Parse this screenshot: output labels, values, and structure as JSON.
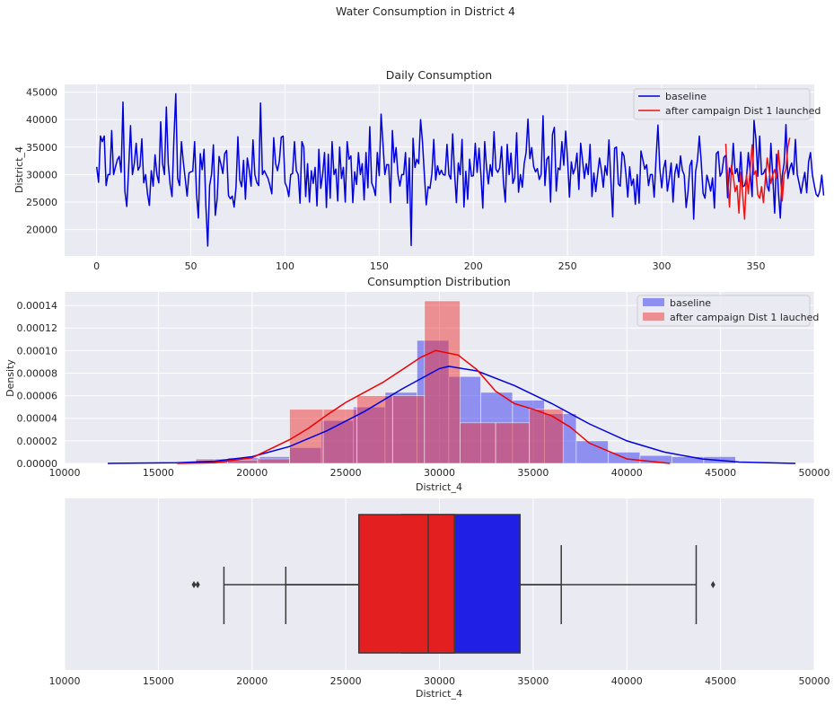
{
  "figure": {
    "suptitle": "Water Consumption in District 4"
  },
  "chart_data": [
    {
      "type": "line",
      "title": "Daily Consumption",
      "xlabel": "",
      "ylabel": "District_4",
      "xlim": [
        -17,
        381
      ],
      "ylim": [
        15200,
        46400
      ],
      "xticks": [
        0,
        50,
        100,
        150,
        200,
        250,
        300,
        350
      ],
      "yticks": [
        20000,
        25000,
        30000,
        35000,
        40000,
        45000
      ],
      "grid": true,
      "legend": "top-right",
      "series": [
        {
          "name": "baseline",
          "color": "#0000dd",
          "x_start": 0,
          "values": [
            31400,
            28600,
            37000,
            36000,
            37000,
            28000,
            30000,
            30000,
            38000,
            30000,
            31400,
            32700,
            33300,
            30400,
            43200,
            27000,
            24200,
            31000,
            38900,
            30000,
            32000,
            35700,
            30800,
            31500,
            36500,
            28500,
            30000,
            26500,
            24400,
            30700,
            27900,
            33600,
            30000,
            28500,
            39600,
            32000,
            30000,
            42300,
            32000,
            28200,
            26000,
            36400,
            44700,
            29300,
            28000,
            36000,
            32300,
            29300,
            26100,
            30300,
            30500,
            30600,
            36000,
            26500,
            22100,
            33800,
            30900,
            34600,
            24400,
            17000,
            28000,
            30000,
            35400,
            22600,
            25600,
            33300,
            31900,
            30200,
            33800,
            34400,
            26200,
            25600,
            26100,
            24100,
            27700,
            36900,
            29000,
            27800,
            32600,
            25500,
            33000,
            30800,
            27900,
            36300,
            30000,
            28600,
            28000,
            43000,
            30000,
            30700,
            30000,
            29300,
            28000,
            26500,
            36700,
            32000,
            30700,
            32500,
            36800,
            37000,
            28500,
            27700,
            26000,
            30000,
            30200,
            36000,
            30700,
            30000,
            24800,
            36000,
            35000,
            26000,
            32000,
            25000,
            30700,
            28400,
            31300,
            24300,
            34600,
            27500,
            30000,
            34000,
            24000,
            33700,
            25700,
            36000,
            30000,
            31000,
            25200,
            35000,
            29300,
            31300,
            25000,
            36000,
            32800,
            33400,
            24900,
            30500,
            28200,
            34000,
            30000,
            32000,
            25400,
            34000,
            27600,
            38700,
            28500,
            27600,
            26200,
            34000,
            29800,
            41000,
            35600,
            30000,
            31800,
            31800,
            24900,
            38000,
            32200,
            34900,
            30000,
            27900,
            30000,
            30000,
            34000,
            24800,
            33000,
            17100,
            36600,
            31300,
            32800,
            32000,
            40000,
            36000,
            30000,
            24500,
            27800,
            27500,
            30200,
            36400,
            29000,
            31600,
            30000,
            30800,
            30000,
            29900,
            35500,
            30000,
            29200,
            37400,
            30400,
            24900,
            32100,
            30000,
            36400,
            24100,
            30600,
            25500,
            32800,
            29700,
            29800,
            35700,
            30400,
            34800,
            30000,
            23900,
            36000,
            31400,
            28300,
            31800,
            29700,
            37800,
            31000,
            30400,
            31200,
            35100,
            28600,
            25000,
            35500,
            30000,
            33900,
            28400,
            29500,
            37600,
            26800,
            30000,
            27700,
            32000,
            34000,
            40100,
            32900,
            34900,
            31500,
            30500,
            31100,
            29100,
            30000,
            40700,
            28000,
            32800,
            33300,
            25000,
            37300,
            38600,
            27000,
            31200,
            30900,
            36000,
            31700,
            37900,
            32800,
            25900,
            32300,
            30100,
            31200,
            33900,
            27300,
            35700,
            32600,
            29300,
            32000,
            30000,
            35500,
            26000,
            30300,
            26900,
            30100,
            33000,
            30800,
            27700,
            31600,
            29900,
            36300,
            29100,
            22300,
            34800,
            35000,
            28300,
            27900,
            34100,
            33400,
            30100,
            25900,
            31400,
            28000,
            29200,
            24600,
            30000,
            24800,
            34300,
            32700,
            31000,
            31800,
            28000,
            30000,
            30000,
            25900,
            33000,
            39000,
            31000,
            27600,
            31100,
            32600,
            27000,
            29300,
            32100,
            25000,
            30200,
            31900,
            29500,
            33400,
            30800,
            29900,
            24000,
            26900,
            31600,
            32600,
            21900,
            30500,
            32600,
            37000,
            32300,
            26600,
            25700,
            29900,
            28600,
            27000,
            29400,
            23900,
            33800,
            34200,
            29700,
            30400,
            33100,
            33500,
            25800,
            31200,
            30000,
            35700,
            30200,
            31100,
            28700,
            34100,
            27800,
            28000,
            29400,
            34000,
            30300,
            26000,
            39900,
            36500,
            29700,
            37000,
            30000,
            30200,
            31000,
            27900,
            27000,
            35700,
            29600,
            23000,
            33700,
            26800,
            22100,
            29800,
            32000,
            39100,
            29300,
            31100,
            32100,
            30000,
            36400,
            30000,
            28400,
            26600,
            28700,
            30400,
            26700,
            32300,
            34000,
            30000,
            28100,
            26400,
            26000,
            27100,
            29900,
            26200
          ]
        },
        {
          "name": "after campaign Dist 1 launched",
          "color": "#ee1111",
          "x_start": 334,
          "values": [
            35600,
            29500,
            24100,
            31600,
            29700,
            26900,
            28000,
            23000,
            30400,
            26300,
            21900,
            30000,
            26500,
            31000,
            35400,
            30000,
            30700,
            26300,
            25700,
            27800,
            24900,
            29100,
            33000,
            31000,
            28400,
            30000,
            30900,
            29300,
            34400,
            30100,
            25200,
            30000,
            31000,
            35000,
            36700
          ]
        }
      ]
    },
    {
      "type": "histogram",
      "title": "Consumption Distribution",
      "xlabel": "District_4",
      "ylabel": "Density",
      "xlim": [
        10000,
        50000
      ],
      "ylim": [
        0,
        0.000152
      ],
      "xticks": [
        10000,
        15000,
        20000,
        25000,
        30000,
        35000,
        40000,
        45000,
        50000
      ],
      "yticks": [
        0,
        2e-05,
        4e-05,
        6e-05,
        8e-05,
        0.0001,
        0.00012,
        0.00014
      ],
      "ytick_labels": [
        "0.00000",
        "0.00002",
        "0.00004",
        "0.00006",
        "0.00008",
        "0.00010",
        "0.00012",
        "0.00014"
      ],
      "grid": true,
      "legend": "top-right",
      "series": [
        {
          "name": "baseline",
          "color": "#3333ee",
          "bins": [
            [
              17000,
              18000,
              18700,
              20400,
              22000,
              23700,
              25400,
              27100,
              28800,
              30500,
              32200,
              33900,
              35600,
              37300,
              39000,
              40700,
              42400,
              44100
            ],
            [
              4e-06,
              4e-06,
              5e-06,
              6e-06,
              1.4e-05,
              3.8e-05,
              5e-05,
              6.3e-05,
              0.000109,
              7.7e-05,
              6.3e-05,
              5.6e-05,
              4.4e-05,
              2e-05,
              1e-05,
              7e-06,
              6e-06,
              6e-06
            ]
          ],
          "kde": [
            [
              12300,
              16000,
              18000,
              20000,
              22000,
              24000,
              26000,
              28000,
              30000,
              30500,
              32000,
              34000,
              36000,
              38000,
              40000,
              42000,
              44000,
              46000,
              49000
            ],
            [
              0,
              6e-07,
              2e-06,
              6e-06,
              1.5e-05,
              2.9e-05,
              4.6e-05,
              6.6e-05,
              8.4e-05,
              8.6e-05,
              8.2e-05,
              6.9e-05,
              5.3e-05,
              3.5e-05,
              2e-05,
              1e-05,
              4e-06,
              1.2e-06,
              0
            ]
          ]
        },
        {
          "name": "after campaign Dist 1 lauched",
          "color": "#ee3333",
          "bins": [
            [
              17000,
              18700,
              20300,
              22000,
              23800,
              25600,
              27500,
              29200,
              31100,
              33000,
              34800,
              36600
            ],
            [
              3e-06,
              3e-06,
              4e-06,
              4.8e-05,
              4.8e-05,
              6e-05,
              6e-05,
              0.000144,
              3.6e-05,
              3.6e-05,
              4.8e-05,
              0.0
            ]
          ],
          "kde": [
            [
              16000,
              18000,
              20000,
              22000,
              23000,
              24000,
              25000,
              26000,
              27000,
              28000,
              29000,
              29800,
              31000,
              32000,
              33000,
              34000,
              35000,
              36000,
              37000,
              38000,
              40000,
              42300
            ],
            [
              0,
              6e-07,
              5e-06,
              2.1e-05,
              3.1e-05,
              4.3e-05,
              5.4e-05,
              6.3e-05,
              7.2e-05,
              8.3e-05,
              9.4e-05,
              0.0001,
              9.6e-05,
              8.3e-05,
              6.4e-05,
              5.3e-05,
              4.8e-05,
              4.2e-05,
              3.2e-05,
              1.8e-05,
              4e-06,
              0
            ]
          ]
        }
      ]
    },
    {
      "type": "box",
      "title": "",
      "xlabel": "District_4",
      "ylabel": "",
      "xlim": [
        10000,
        50000
      ],
      "xticks": [
        10000,
        15000,
        20000,
        25000,
        30000,
        35000,
        40000,
        45000,
        50000
      ],
      "grid": true,
      "series": [
        {
          "name": "baseline",
          "color": "#1f1fe6",
          "whisker_low": 18500,
          "q1": 28000,
          "median": 30800,
          "q3": 34300,
          "whisker_high": 43700,
          "outliers": [
            16900,
            17100,
            44600
          ]
        },
        {
          "name": "after campaign",
          "color": "#e31f1f",
          "whisker_low": 21800,
          "q1": 25700,
          "median": 29400,
          "q3": 30800,
          "whisker_high": 36500,
          "outliers": []
        }
      ]
    }
  ]
}
